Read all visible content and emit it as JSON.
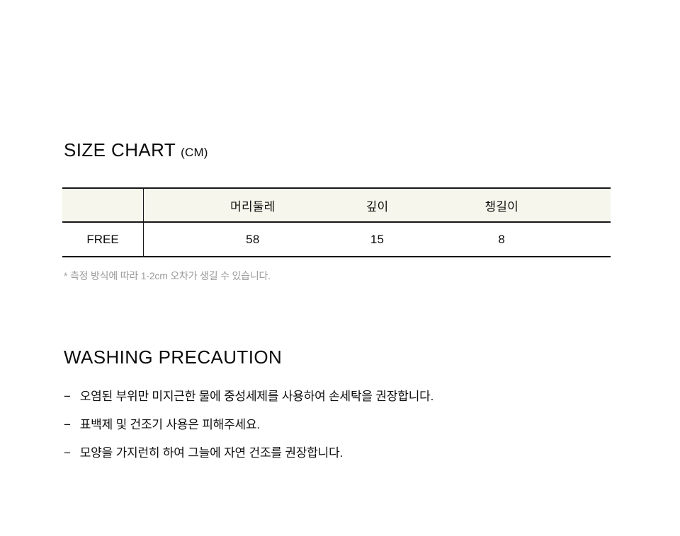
{
  "size_chart": {
    "title": "SIZE CHART",
    "unit": "(CM)",
    "table": {
      "corner_label": "",
      "headers": [
        "머리둘레",
        "깊이",
        "챙길이"
      ],
      "rows": [
        {
          "label": "FREE",
          "values": [
            "58",
            "15",
            "8"
          ]
        }
      ],
      "header_bg": "#f6f6ec",
      "border_color": "#161616"
    },
    "note": "* 측정 방식에 따라 1-2cm 오차가 생길 수 있습니다.",
    "note_color": "#9b9b9b"
  },
  "washing": {
    "title": "WASHING PRECAUTION",
    "dash": "−",
    "items": [
      "오염된 부위만 미지근한 물에 중성세제를 사용하여 손세탁을 권장합니다.",
      "표백제 및 건조기 사용은 피해주세요.",
      "모양을 가지런히 하여 그늘에 자연 건조를 권장합니다."
    ]
  }
}
